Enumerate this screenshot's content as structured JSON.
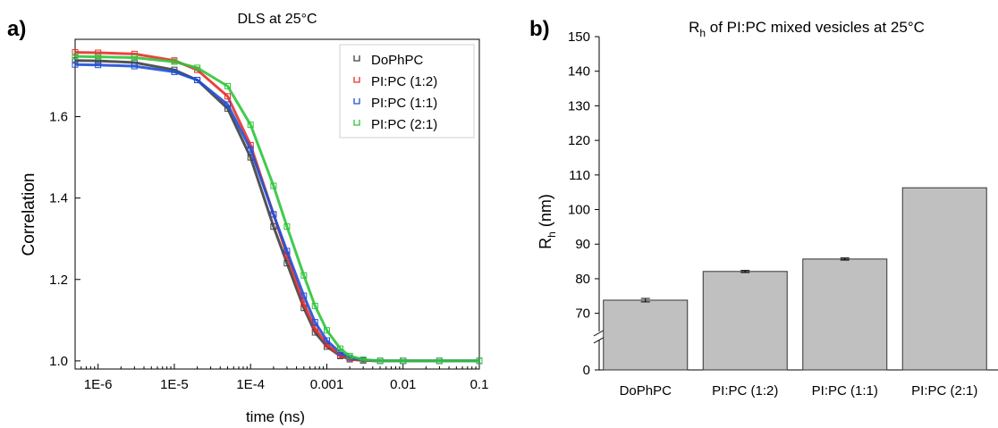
{
  "panel_a": {
    "label": "a)",
    "chart_data": {
      "type": "line",
      "title": "DLS at 25°C",
      "xlabel": "time (ns)",
      "ylabel": "Correlation",
      "xscale": "log",
      "xlim": [
        5e-07,
        0.1
      ],
      "ylim": [
        0.98,
        1.79
      ],
      "x_ticks": [
        {
          "v": 1e-06,
          "label": "1E-6"
        },
        {
          "v": 1e-05,
          "label": "1E-5"
        },
        {
          "v": 0.0001,
          "label": "1E-4"
        },
        {
          "v": 0.001,
          "label": "0.001"
        },
        {
          "v": 0.01,
          "label": "0.01"
        },
        {
          "v": 0.1,
          "label": "0.1"
        }
      ],
      "y_ticks": [
        {
          "v": 1.0,
          "label": "1.0"
        },
        {
          "v": 1.2,
          "label": "1.2"
        },
        {
          "v": 1.4,
          "label": "1.4"
        },
        {
          "v": 1.6,
          "label": "1.6"
        }
      ],
      "legend_position": "top-right",
      "series": [
        {
          "name": "DoPhPC",
          "color": "#404040",
          "x": [
            5e-07,
            1e-06,
            3e-06,
            1e-05,
            2e-05,
            5e-05,
            0.0001,
            0.0002,
            0.0003,
            0.0005,
            0.0007,
            0.001,
            0.0015,
            0.002,
            0.003,
            0.005,
            0.01,
            0.03,
            0.1
          ],
          "y": [
            1.738,
            1.737,
            1.733,
            1.715,
            1.69,
            1.62,
            1.5,
            1.33,
            1.24,
            1.13,
            1.07,
            1.035,
            1.012,
            1.004,
            1.001,
            1.0,
            1.0,
            1.0,
            1.0
          ]
        },
        {
          "name": "PI:PC (1:2)",
          "color": "#e8302a",
          "x": [
            5e-07,
            1e-06,
            3e-06,
            1e-05,
            2e-05,
            5e-05,
            0.0001,
            0.0002,
            0.0003,
            0.0005,
            0.0007,
            0.001,
            0.0015,
            0.002,
            0.003,
            0.005,
            0.01,
            0.03,
            0.1
          ],
          "y": [
            1.758,
            1.757,
            1.754,
            1.738,
            1.715,
            1.65,
            1.53,
            1.36,
            1.26,
            1.14,
            1.08,
            1.04,
            1.014,
            1.005,
            1.001,
            1.0,
            1.0,
            1.0,
            1.0
          ]
        },
        {
          "name": "PI:PC (1:1)",
          "color": "#1f4fd8",
          "x": [
            5e-07,
            1e-06,
            3e-06,
            1e-05,
            2e-05,
            5e-05,
            0.0001,
            0.0002,
            0.0003,
            0.0005,
            0.0007,
            0.001,
            0.0015,
            0.002,
            0.003,
            0.005,
            0.01,
            0.03,
            0.1
          ],
          "y": [
            1.728,
            1.727,
            1.724,
            1.71,
            1.69,
            1.63,
            1.52,
            1.36,
            1.27,
            1.16,
            1.095,
            1.05,
            1.02,
            1.008,
            1.002,
            1.0,
            1.0,
            1.0,
            1.0
          ]
        },
        {
          "name": "PI:PC (2:1)",
          "color": "#2fc43a",
          "x": [
            5e-07,
            1e-06,
            3e-06,
            1e-05,
            2e-05,
            5e-05,
            0.0001,
            0.0002,
            0.0003,
            0.0005,
            0.0007,
            0.001,
            0.0015,
            0.002,
            0.003,
            0.005,
            0.01,
            0.03,
            0.1
          ],
          "y": [
            1.748,
            1.747,
            1.745,
            1.735,
            1.72,
            1.675,
            1.58,
            1.43,
            1.33,
            1.21,
            1.135,
            1.075,
            1.03,
            1.012,
            1.003,
            1.0,
            1.0,
            1.0,
            1.0
          ]
        }
      ]
    }
  },
  "panel_b": {
    "label": "b)",
    "chart_data": {
      "type": "bar",
      "title": "R_h of PI:PC mixed vesicles at 25°C",
      "title_parts": {
        "r": "R",
        "sub": "h",
        "rest": " of PI:PC mixed vesicles at 25°C"
      },
      "ylabel": "R_h (nm)",
      "ylabel_parts": {
        "r": "R",
        "sub": "h",
        "rest": " (nm)"
      },
      "axis_break": true,
      "ylim": [
        0,
        150
      ],
      "y_ticks_low": [
        {
          "v": 0,
          "label": "0"
        }
      ],
      "y_ticks_high": [
        {
          "v": 70,
          "label": "70"
        },
        {
          "v": 80,
          "label": "80"
        },
        {
          "v": 90,
          "label": "90"
        },
        {
          "v": 100,
          "label": "100"
        },
        {
          "v": 110,
          "label": "110"
        },
        {
          "v": 120,
          "label": "120"
        },
        {
          "v": 130,
          "label": "130"
        },
        {
          "v": 140,
          "label": "140"
        },
        {
          "v": 150,
          "label": "150"
        }
      ],
      "categories": [
        "DoPhPC",
        "PI:PC (1:2)",
        "PI:PC (1:1)",
        "PI:PC (2:1)"
      ],
      "values": [
        73.8,
        82.1,
        85.7,
        106.3
      ],
      "errors": [
        0.5,
        0.3,
        0.3,
        0.0
      ],
      "bar_color": "#c0c0c0",
      "grid": false
    }
  }
}
